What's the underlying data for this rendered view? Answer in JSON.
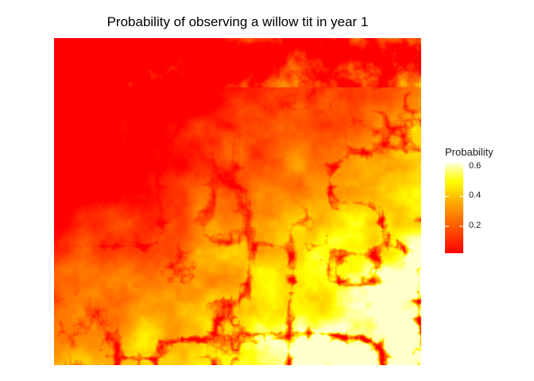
{
  "chart_data": {
    "type": "heatmap",
    "title": "Probability of observing a willow tit in year 1",
    "xlabel": "",
    "ylabel": "",
    "legend": {
      "title": "Probability",
      "placement": "right",
      "range": [
        0.02,
        0.62
      ],
      "ticks": [
        0.2,
        0.4,
        0.6
      ],
      "tick_labels": [
        "0.2",
        "0.4",
        "0.6"
      ],
      "palette": [
        "#ff0000",
        "#ff5a00",
        "#ffa500",
        "#ffff00",
        "#ffffcc"
      ]
    },
    "grid": false,
    "axes_visible": false
  }
}
